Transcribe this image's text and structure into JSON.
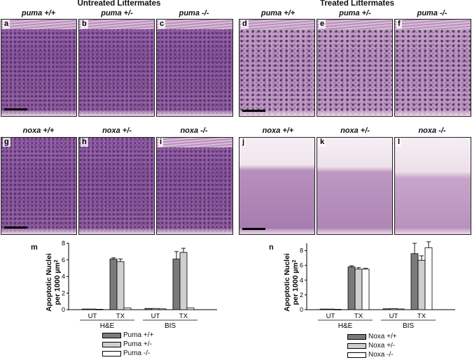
{
  "titles": {
    "untreated": "Untreated Littermates",
    "treated": "Treated Littermates"
  },
  "rows": [
    {
      "genotypes": [
        "puma +/+",
        "puma +/-",
        "puma -/-",
        "puma +/+",
        "puma +/-",
        "puma -/-"
      ],
      "letters": [
        "a",
        "b",
        "c",
        "d",
        "e",
        "f"
      ]
    },
    {
      "genotypes": [
        "noxa +/+",
        "noxa +/-",
        "noxa -/-",
        "noxa +/+",
        "noxa +/-",
        "noxa -/-"
      ],
      "letters": [
        "g",
        "h",
        "i",
        "j",
        "k",
        "l"
      ]
    }
  ],
  "colors": {
    "wt": "#7a7a7a",
    "het": "#cfcfcf",
    "ko": "#ffffff"
  },
  "chart_data": [
    {
      "type": "bar",
      "panel_label": "m",
      "ylabel_line1": "Apoptotic Nuclei",
      "ylabel_line2": "per 1000 µm",
      "ylabel_sup": "2",
      "ylim": [
        0,
        8
      ],
      "yticks": [
        "0",
        "2",
        "4",
        "6",
        "8"
      ],
      "groups": [
        "H&E",
        "BIS"
      ],
      "categories": [
        "UT",
        "TX",
        "UT",
        "TX"
      ],
      "series": [
        {
          "name": "Puma +/+",
          "values": [
            0.08,
            6.1,
            0.15,
            6.1
          ],
          "errors": [
            0,
            0.15,
            0,
            0.9
          ]
        },
        {
          "name": "Puma +/-",
          "values": [
            0.08,
            5.8,
            0.15,
            6.9
          ],
          "errors": [
            0,
            0.3,
            0,
            0.5
          ]
        },
        {
          "name": "Puma -/-",
          "values": [
            0.05,
            0.2,
            0.1,
            0.2
          ],
          "errors": [
            0,
            0,
            0,
            0
          ]
        }
      ],
      "legend": [
        "Puma +/+",
        "Puma +/-",
        "Puma -/-"
      ]
    },
    {
      "type": "bar",
      "panel_label": "n",
      "ylabel_line1": "Apoptotic Nuclei",
      "ylabel_line2": "per 1000 µm",
      "ylabel_sup": "2",
      "ylim": [
        0,
        9
      ],
      "yticks": [
        "0",
        "2",
        "4",
        "6",
        "8"
      ],
      "groups": [
        "H&E",
        "BIS"
      ],
      "categories": [
        "UT",
        "TX",
        "UT",
        "TX"
      ],
      "series": [
        {
          "name": "Noxa +/+",
          "values": [
            0.08,
            5.8,
            0.12,
            7.6
          ],
          "errors": [
            0,
            0.15,
            0,
            1.4
          ]
        },
        {
          "name": "Noxa +/-",
          "values": [
            0.08,
            5.5,
            0.15,
            6.7
          ],
          "errors": [
            0,
            0.2,
            0,
            0.6
          ]
        },
        {
          "name": "Noxa -/-",
          "values": [
            0.05,
            5.5,
            0.1,
            8.4
          ],
          "errors": [
            0,
            0.1,
            0,
            0.8
          ]
        }
      ],
      "legend": [
        "Noxa +/+",
        "Noxa +/-",
        "Noxa -/-"
      ]
    }
  ]
}
